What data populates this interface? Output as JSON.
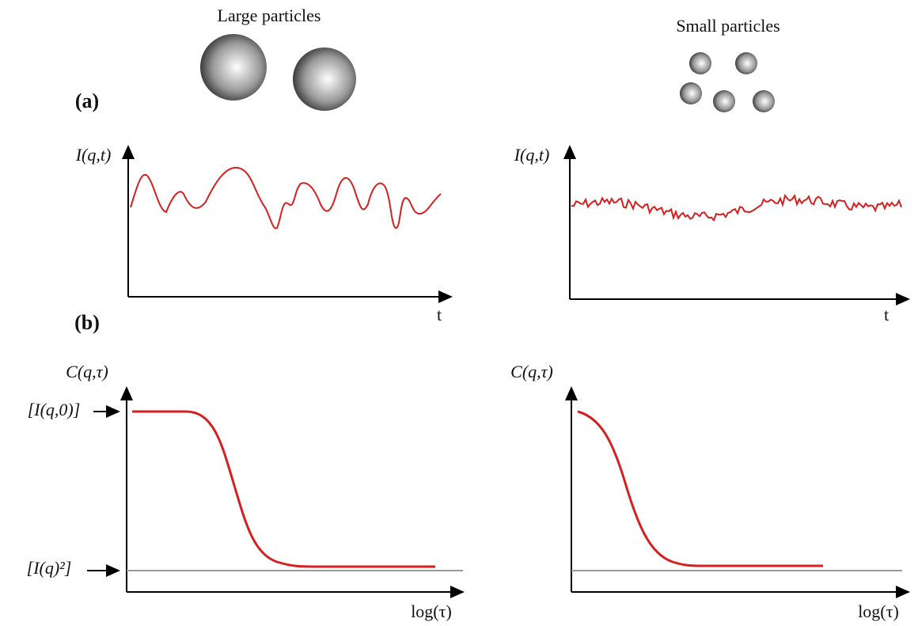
{
  "particles": {
    "large": "Large particles",
    "small": "Small particles"
  },
  "panels": [
    {
      "label": "(a)",
      "plots": [
        {
          "y_label": "I(q,t)",
          "x_label": "t"
        },
        {
          "y_label": "I(q,t)",
          "x_label": "t"
        }
      ]
    },
    {
      "label": "(b)",
      "plots": [
        {
          "y_label": "C(q,τ)",
          "x_label": "log(τ)",
          "annotations": [
            "[I(q,0)]",
            "[I(q)²]"
          ]
        },
        {
          "y_label": "C(q,τ)",
          "x_label": "log(τ)"
        }
      ]
    }
  ]
}
